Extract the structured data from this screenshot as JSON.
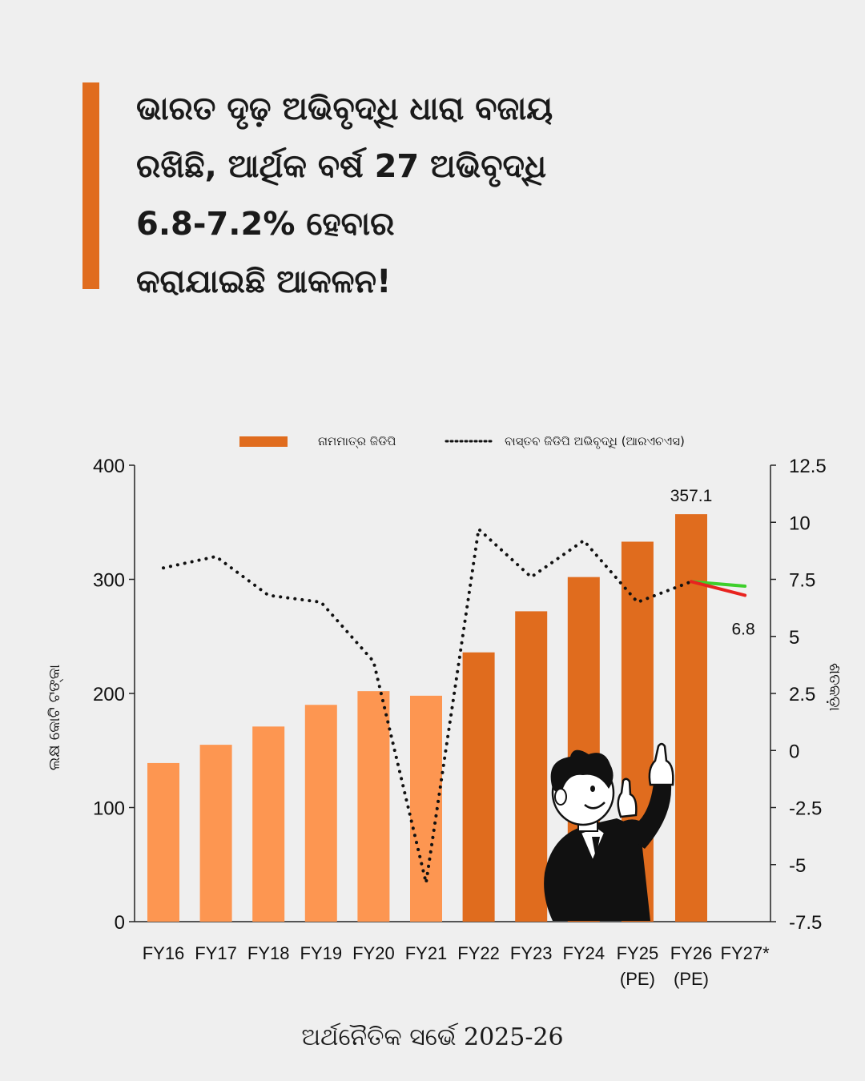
{
  "headline": {
    "lines": [
      "ଭାରତ ଦୃଢ଼ ଅଭିବୃଦ୍ଧି ଧାରା ବଜାୟ",
      "ରଖିଛି, ଆର୍ଥିକ ବର୍ଷ 27 ଅଭିବୃଦ୍ଧି",
      "6.8-7.2% ହେବାର",
      " କରାଯାଇଛି ଆକଳନ!"
    ]
  },
  "footer": {
    "source": "ଅର୍ଥନୈତିକ ସର୍ଭେ 2025-26"
  },
  "colors": {
    "accent": "#e06c1e",
    "bar_light": "#fd9651",
    "bar_dark": "#e06c1e",
    "projection_high": "#3ecf2b",
    "projection_low": "#e8231f"
  },
  "illustration": {
    "icon": "businessman-pointing-up-illustration"
  },
  "chart_data": {
    "type": "bar",
    "categories": [
      "FY16",
      "FY17",
      "FY18",
      "FY19",
      "FY20",
      "FY21",
      "FY22",
      "FY23",
      "FY24",
      "FY25\n(PE)",
      "FY26\n(PE)",
      "FY27*"
    ],
    "series": [
      {
        "name": "ନାମମାତ୍ର ଜିଡିପି",
        "type": "bar",
        "axis": "left",
        "values": [
          139,
          155,
          171,
          190,
          202,
          198,
          236,
          272,
          302,
          333,
          357.1,
          null
        ]
      },
      {
        "name": "ବାସ୍ତବ ଜିଡିପି ଅଭିବୃଦ୍ଧି (ଆରଏଚଏସ)",
        "type": "line",
        "style": "dotted",
        "axis": "right",
        "values": [
          8.0,
          8.5,
          6.8,
          6.5,
          3.9,
          -5.8,
          9.7,
          7.6,
          9.2,
          6.5,
          7.4,
          null
        ]
      }
    ],
    "projection": {
      "from": "FY26\n(PE)",
      "to": "FY27*",
      "high": 7.2,
      "low": 6.8
    },
    "bar_highlight_from_index": 6,
    "data_labels": {
      "FY26_bar": "357.1",
      "FY27_low": "6.8"
    },
    "ylabel": "ଲକ୍ଷ କୋଟି ଟଙ୍କା",
    "y2label": "ଶତକଡ଼ା",
    "ylim": [
      0,
      400
    ],
    "y2lim": [
      -7.5,
      12.5
    ],
    "yticks": [
      "0",
      "100",
      "200",
      "300",
      "400"
    ],
    "y2ticks": [
      "-7.5",
      "-5",
      "-2.5",
      "0",
      "2.5",
      "5",
      "7.5",
      "10",
      "12.5"
    ],
    "legend_position": "top"
  }
}
